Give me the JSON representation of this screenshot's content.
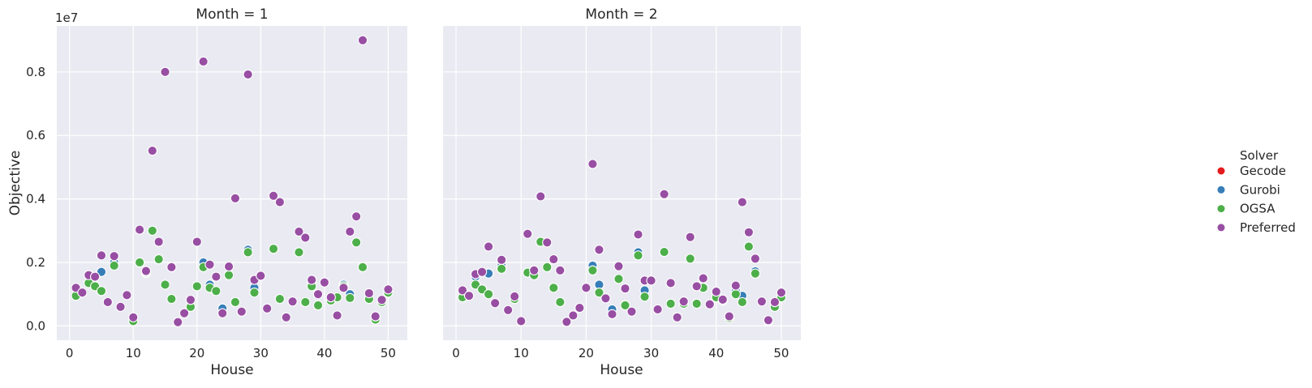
{
  "chart_data": {
    "type": "scatter",
    "x_label": "House",
    "y_label": "Objective",
    "y_offset_label": "1e7",
    "x_ticks": [
      0,
      10,
      20,
      30,
      40,
      50
    ],
    "x_tick_labels": [
      "0",
      "10",
      "20",
      "30",
      "40",
      "50"
    ],
    "y_ticks": [
      0,
      0.2,
      0.4,
      0.6,
      0.8
    ],
    "y_tick_labels": [
      "0.0",
      "0.2",
      "0.4",
      "0.6",
      "0.8"
    ],
    "xlim": [
      -2,
      53
    ],
    "ylim": [
      -0.045,
      0.945
    ],
    "y_units": "1e7",
    "grid": true,
    "legend": {
      "title": "Solver",
      "placement": "right",
      "entries": [
        {
          "name": "Gecode",
          "color": "#e41a1c"
        },
        {
          "name": "Gurobi",
          "color": "#377eb8"
        },
        {
          "name": "OGSA",
          "color": "#4daf4a"
        },
        {
          "name": "Preferred",
          "color": "#984ea3"
        }
      ]
    },
    "panels": [
      {
        "title": "Month = 1",
        "series": [
          {
            "name": "Gurobi",
            "points": [
              [
                5,
                0.17
              ],
              [
                7,
                0.2
              ],
              [
                12,
                0.167
              ],
              [
                21,
                0.2
              ],
              [
                22,
                0.13
              ],
              [
                24,
                0.055
              ],
              [
                28,
                0.24
              ],
              [
                29,
                0.12
              ],
              [
                38,
                0.135
              ],
              [
                41,
                0.085
              ],
              [
                43,
                0.13
              ],
              [
                44,
                0.1
              ],
              [
                48,
                0.03
              ]
            ]
          },
          {
            "name": "OGSA",
            "points": [
              [
                1,
                0.095
              ],
              [
                3,
                0.135
              ],
              [
                4,
                0.125
              ],
              [
                5,
                0.11
              ],
              [
                7,
                0.19
              ],
              [
                10,
                0.015
              ],
              [
                11,
                0.2
              ],
              [
                12,
                0.17
              ],
              [
                13,
                0.3
              ],
              [
                14,
                0.21
              ],
              [
                15,
                0.13
              ],
              [
                16,
                0.085
              ],
              [
                19,
                0.06
              ],
              [
                20,
                0.125
              ],
              [
                21,
                0.185
              ],
              [
                22,
                0.12
              ],
              [
                23,
                0.11
              ],
              [
                25,
                0.16
              ],
              [
                26,
                0.075
              ],
              [
                28,
                0.232
              ],
              [
                29,
                0.105
              ],
              [
                32,
                0.243
              ],
              [
                33,
                0.085
              ],
              [
                36,
                0.232
              ],
              [
                37,
                0.075
              ],
              [
                38,
                0.125
              ],
              [
                39,
                0.065
              ],
              [
                41,
                0.08
              ],
              [
                42,
                0.09
              ],
              [
                43,
                0.125
              ],
              [
                44,
                0.088
              ],
              [
                45,
                0.263
              ],
              [
                46,
                0.185
              ],
              [
                47,
                0.085
              ],
              [
                48,
                0.02
              ],
              [
                49,
                0.075
              ],
              [
                50,
                0.105
              ]
            ]
          },
          {
            "name": "Preferred",
            "points": [
              [
                1,
                0.12
              ],
              [
                2,
                0.105
              ],
              [
                3,
                0.16
              ],
              [
                4,
                0.155
              ],
              [
                5,
                0.222
              ],
              [
                6,
                0.075
              ],
              [
                7,
                0.22
              ],
              [
                8,
                0.06
              ],
              [
                9,
                0.097
              ],
              [
                10,
                0.027
              ],
              [
                11,
                0.303
              ],
              [
                12,
                0.173
              ],
              [
                13,
                0.552
              ],
              [
                14,
                0.265
              ],
              [
                15,
                0.8
              ],
              [
                16,
                0.185
              ],
              [
                17,
                0.012
              ],
              [
                18,
                0.04
              ],
              [
                19,
                0.082
              ],
              [
                20,
                0.265
              ],
              [
                21,
                0.833
              ],
              [
                22,
                0.193
              ],
              [
                23,
                0.155
              ],
              [
                24,
                0.04
              ],
              [
                25,
                0.187
              ],
              [
                26,
                0.402
              ],
              [
                27,
                0.045
              ],
              [
                28,
                0.792
              ],
              [
                29,
                0.145
              ],
              [
                30,
                0.158
              ],
              [
                31,
                0.055
              ],
              [
                32,
                0.41
              ],
              [
                33,
                0.39
              ],
              [
                34,
                0.027
              ],
              [
                35,
                0.077
              ],
              [
                36,
                0.297
              ],
              [
                37,
                0.278
              ],
              [
                38,
                0.145
              ],
              [
                39,
                0.1
              ],
              [
                40,
                0.137
              ],
              [
                41,
                0.09
              ],
              [
                42,
                0.033
              ],
              [
                43,
                0.12
              ],
              [
                44,
                0.297
              ],
              [
                45,
                0.345
              ],
              [
                46,
                0.9
              ],
              [
                47,
                0.103
              ],
              [
                48,
                0.03
              ],
              [
                49,
                0.082
              ],
              [
                50,
                0.115
              ]
            ]
          }
        ]
      },
      {
        "title": "Month = 2",
        "series": [
          {
            "name": "Gurobi",
            "points": [
              [
                3,
                0.155
              ],
              [
                5,
                0.165
              ],
              [
                7,
                0.19
              ],
              [
                21,
                0.19
              ],
              [
                22,
                0.13
              ],
              [
                24,
                0.052
              ],
              [
                28,
                0.232
              ],
              [
                29,
                0.112
              ],
              [
                43,
                0.11
              ],
              [
                44,
                0.095
              ],
              [
                46,
                0.172
              ],
              [
                48,
                0.015
              ]
            ]
          },
          {
            "name": "OGSA",
            "points": [
              [
                1,
                0.09
              ],
              [
                3,
                0.13
              ],
              [
                4,
                0.115
              ],
              [
                5,
                0.1
              ],
              [
                7,
                0.18
              ],
              [
                9,
                0.085
              ],
              [
                11,
                0.168
              ],
              [
                12,
                0.16
              ],
              [
                13,
                0.265
              ],
              [
                14,
                0.185
              ],
              [
                15,
                0.12
              ],
              [
                16,
                0.075
              ],
              [
                21,
                0.175
              ],
              [
                22,
                0.105
              ],
              [
                25,
                0.148
              ],
              [
                26,
                0.065
              ],
              [
                28,
                0.222
              ],
              [
                29,
                0.092
              ],
              [
                32,
                0.233
              ],
              [
                33,
                0.07
              ],
              [
                35,
                0.07
              ],
              [
                36,
                0.212
              ],
              [
                37,
                0.07
              ],
              [
                38,
                0.12
              ],
              [
                40,
                0.09
              ],
              [
                41,
                0.08
              ],
              [
                42,
                0.025
              ],
              [
                43,
                0.1
              ],
              [
                44,
                0.075
              ],
              [
                45,
                0.25
              ],
              [
                46,
                0.165
              ],
              [
                49,
                0.06
              ],
              [
                50,
                0.09
              ]
            ]
          },
          {
            "name": "Preferred",
            "points": [
              [
                1,
                0.112
              ],
              [
                2,
                0.095
              ],
              [
                3,
                0.163
              ],
              [
                4,
                0.17
              ],
              [
                5,
                0.25
              ],
              [
                6,
                0.072
              ],
              [
                7,
                0.208
              ],
              [
                8,
                0.05
              ],
              [
                9,
                0.093
              ],
              [
                10,
                0.015
              ],
              [
                11,
                0.29
              ],
              [
                12,
                0.175
              ],
              [
                13,
                0.408
              ],
              [
                14,
                0.263
              ],
              [
                15,
                0.21
              ],
              [
                16,
                0.175
              ],
              [
                17,
                0.013
              ],
              [
                18,
                0.033
              ],
              [
                19,
                0.057
              ],
              [
                20,
                0.12
              ],
              [
                21,
                0.51
              ],
              [
                22,
                0.24
              ],
              [
                23,
                0.087
              ],
              [
                24,
                0.037
              ],
              [
                25,
                0.188
              ],
              [
                26,
                0.118
              ],
              [
                27,
                0.045
              ],
              [
                28,
                0.288
              ],
              [
                29,
                0.143
              ],
              [
                30,
                0.143
              ],
              [
                31,
                0.052
              ],
              [
                32,
                0.415
              ],
              [
                33,
                0.135
              ],
              [
                34,
                0.027
              ],
              [
                35,
                0.077
              ],
              [
                36,
                0.28
              ],
              [
                37,
                0.125
              ],
              [
                38,
                0.15
              ],
              [
                39,
                0.068
              ],
              [
                40,
                0.108
              ],
              [
                41,
                0.083
              ],
              [
                42,
                0.03
              ],
              [
                43,
                0.127
              ],
              [
                44,
                0.39
              ],
              [
                45,
                0.295
              ],
              [
                46,
                0.212
              ],
              [
                47,
                0.077
              ],
              [
                48,
                0.018
              ],
              [
                49,
                0.075
              ],
              [
                50,
                0.105
              ]
            ]
          }
        ]
      }
    ]
  }
}
